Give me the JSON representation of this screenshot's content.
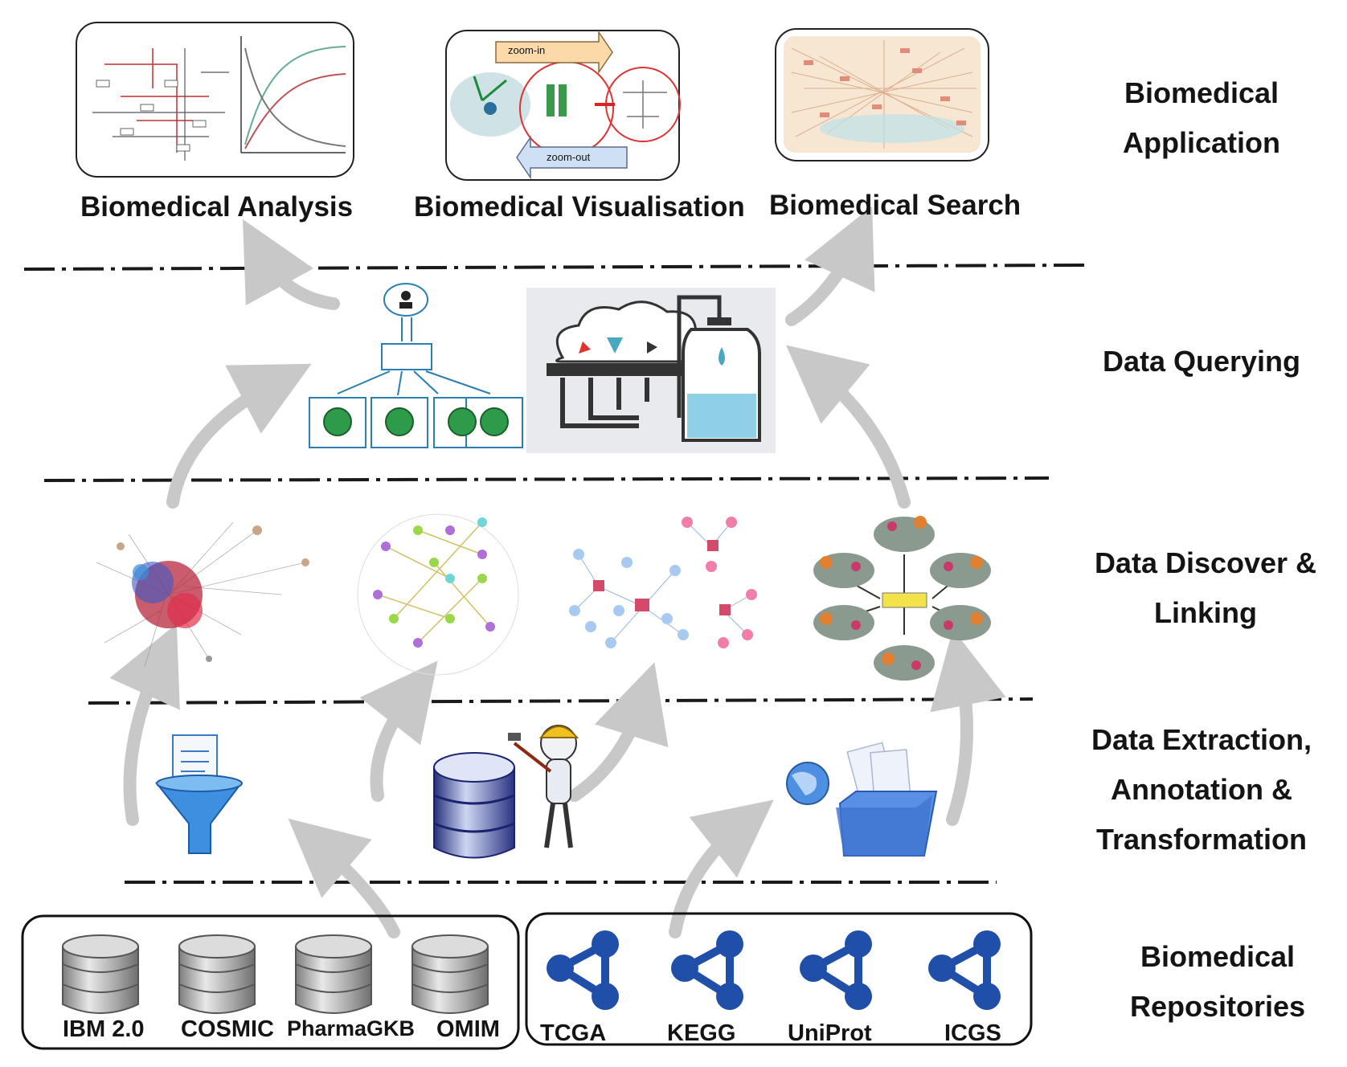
{
  "layers": {
    "application": "Biomedical Application",
    "querying": "Data Querying",
    "linking": "Data Discover & Linking",
    "extraction": "Data Extraction, Annotation & Transformation",
    "repositories": "Biomedical Repositories"
  },
  "applications": {
    "analysis": "Biomedical Analysis",
    "visualisation": "Biomedical Visualisation",
    "search": "Biomedical Search",
    "zoom_in": "zoom-in",
    "zoom_out": "zoom-out"
  },
  "repositories": {
    "databases": [
      "IBM 2.0",
      "COSMIC",
      "PharmaGKB",
      "OMIM"
    ],
    "networks": [
      "TCGA",
      "KEGG",
      "UniProt",
      "ICGS"
    ]
  },
  "colors": {
    "arrow": "#c8c8c8",
    "db_silver": "#9a9a9a",
    "network_blue": "#1f4fa8",
    "node_red": "#d83a4a",
    "node_green": "#2e9b4a"
  }
}
